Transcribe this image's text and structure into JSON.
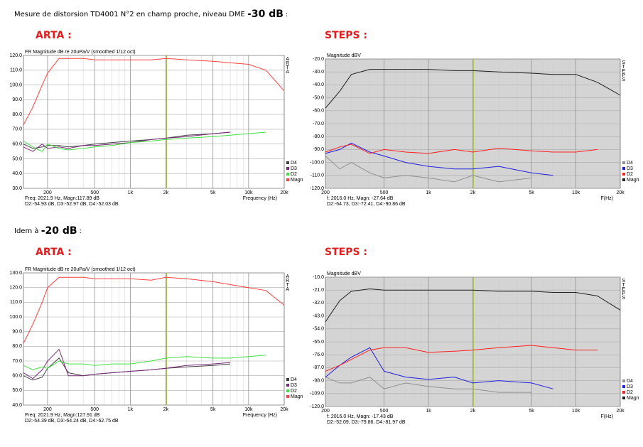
{
  "sections": [
    {
      "intro": "Mesure de distorsion TD4001 N°2 en champ proche, niveau DME ",
      "level": "-30 dB",
      "end": ":",
      "left_label": "ARTA :",
      "right_label": "STEPS :"
    },
    {
      "intro": "Idem à ",
      "level": "-20 dB",
      "end": ":",
      "left_label": "ARTA :",
      "right_label": "STEPS :"
    }
  ],
  "chart_data": [
    {
      "type": "line",
      "title": "FR Magnitude dB re 20uPa/V (smoothed 1/12 oct)",
      "xlabel": "Frequency (Hz)",
      "brand": "ARTA",
      "background": "#ffffff",
      "xscale": "log",
      "grid": true,
      "legend": "lower-right",
      "annotations": [
        "Freq: 2021.9 Hz, Magn:117.89 dB",
        "D2:-54.93 dB, D3:-52.97 dB, D4:-52.03 dB"
      ],
      "cursor_x": 2021.9,
      "cursor_color": "#a0b040",
      "xlim": [
        125,
        20000
      ],
      "xticks": [
        200,
        500,
        {
          "value": 1000,
          "label": "1k"
        },
        {
          "value": 2000,
          "label": "2k"
        },
        {
          "value": 5000,
          "label": "5k"
        },
        {
          "value": 10000,
          "label": "10k"
        },
        {
          "value": 20000,
          "label": "20k"
        }
      ],
      "ylim": [
        30,
        120
      ],
      "yticks": [
        {
          "value": 30,
          "label": "30.0"
        },
        {
          "value": 40,
          "label": "40.0"
        },
        {
          "value": 50,
          "label": "50.0"
        },
        {
          "value": 60,
          "label": "60.0"
        },
        {
          "value": 70,
          "label": "70.0"
        },
        {
          "value": 80,
          "label": "80.0"
        },
        {
          "value": 90,
          "label": "90.0"
        },
        {
          "value": 100,
          "label": "100.0"
        },
        {
          "value": 110,
          "label": "110.0"
        },
        {
          "value": 120,
          "label": "120.0"
        }
      ],
      "x": [
        125,
        150,
        180,
        200,
        250,
        300,
        400,
        500,
        700,
        1000,
        1500,
        2000,
        3000,
        5000,
        7000,
        10000,
        14000,
        20000
      ],
      "series": [
        {
          "name": "D4",
          "color": "#404040",
          "values": [
            60,
            57,
            58,
            59,
            59,
            58,
            59,
            60,
            61,
            62,
            63,
            64,
            66,
            67,
            68,
            null,
            null,
            null
          ]
        },
        {
          "name": "D3",
          "color": "#7a2a7a",
          "values": [
            58,
            55,
            60,
            57,
            58,
            57,
            59,
            59,
            60,
            61,
            63,
            64,
            65,
            67,
            68,
            null,
            null,
            null
          ]
        },
        {
          "name": "D2",
          "color": "#40e040",
          "values": [
            62,
            58,
            55,
            60,
            57,
            56,
            57,
            58,
            59,
            61,
            62,
            63,
            64,
            65,
            66,
            67,
            68,
            null
          ]
        },
        {
          "name": "Magn",
          "color": "#ff4040",
          "values": [
            73,
            85,
            100,
            108,
            118,
            118,
            118,
            117,
            117,
            117,
            117,
            118,
            117,
            116,
            115,
            114,
            110,
            96
          ]
        }
      ]
    },
    {
      "type": "line",
      "title": "Magnitude dBV",
      "xlabel": "F(Hz)",
      "brand": "STEPS",
      "background": "#d4d4d4",
      "xscale": "log",
      "grid": true,
      "legend": "lower-right",
      "annotations": [
        "f: 2016.0 Hz, Magn: -27.64 dB",
        "D2:-64.73, D3:-72.41, D4:-90.86 dB"
      ],
      "cursor_x": 2016.0,
      "cursor_color": "#a0c040",
      "xlim": [
        200,
        20000
      ],
      "xticks": [
        200,
        500,
        {
          "value": 1000,
          "label": "1k"
        },
        {
          "value": 2000,
          "label": "2k"
        },
        {
          "value": 5000,
          "label": "5k"
        },
        {
          "value": 10000,
          "label": "10k"
        },
        {
          "value": 20000,
          "label": "20k"
        }
      ],
      "ylim": [
        -120,
        -20
      ],
      "yticks": [
        {
          "value": -20,
          "label": "-20.0"
        },
        {
          "value": -30,
          "label": "-30.0"
        },
        {
          "value": -40,
          "label": "-40.0"
        },
        {
          "value": -50,
          "label": "-50.0"
        },
        {
          "value": -60,
          "label": "-60.0"
        },
        {
          "value": -70,
          "label": "-70.0"
        },
        {
          "value": -80,
          "label": "-80.0"
        },
        {
          "value": -90,
          "label": "-90.0"
        },
        {
          "value": -100,
          "label": "-100.0"
        },
        {
          "value": -110,
          "label": "-110.0"
        },
        {
          "value": -120,
          "label": "-120.0"
        }
      ],
      "x": [
        200,
        250,
        300,
        400,
        500,
        700,
        1000,
        1500,
        2000,
        3000,
        5000,
        7000,
        10000,
        14000,
        20000
      ],
      "series": [
        {
          "name": "D4",
          "color": "#909090",
          "values": [
            -95,
            -105,
            -100,
            -108,
            -112,
            -110,
            -112,
            -115,
            -110,
            -115,
            -112,
            null,
            null,
            null,
            null
          ]
        },
        {
          "name": "D3",
          "color": "#2020e0",
          "values": [
            -93,
            -90,
            -85,
            -92,
            -95,
            -100,
            -103,
            -105,
            -105,
            -103,
            -108,
            -110,
            null,
            null,
            null
          ]
        },
        {
          "name": "D2",
          "color": "#ff2020",
          "values": [
            -92,
            -88,
            -86,
            -93,
            -90,
            -92,
            -93,
            -90,
            -92,
            -89,
            -91,
            -92,
            -92,
            -90,
            null
          ]
        },
        {
          "name": "Magn",
          "color": "#202020",
          "values": [
            -58,
            -45,
            -32,
            -28,
            -28,
            -28,
            -28,
            -29,
            -29,
            -30,
            -31,
            -32,
            -32,
            -38,
            -48
          ]
        }
      ]
    },
    {
      "type": "line",
      "title": "FR Magnitude dB re 20uPa/V (smoothed 1/12 oct)",
      "xlabel": "Frequency (Hz)",
      "brand": "ARTA",
      "background": "#ffffff",
      "xscale": "log",
      "grid": true,
      "legend": "lower-right",
      "annotations": [
        "Freq: 2021.9 Hz, Magn:127.91 dB",
        "D2:-54.39 dB, D3:-64.24 dB, D4:-62.75 dB"
      ],
      "cursor_x": 2021.9,
      "cursor_color": "#a0b040",
      "xlim": [
        125,
        20000
      ],
      "xticks": [
        200,
        500,
        {
          "value": 1000,
          "label": "1k"
        },
        {
          "value": 2000,
          "label": "2k"
        },
        {
          "value": 5000,
          "label": "5k"
        },
        {
          "value": 10000,
          "label": "10k"
        },
        {
          "value": 20000,
          "label": "20k"
        }
      ],
      "ylim": [
        40,
        130
      ],
      "yticks": [
        {
          "value": 40,
          "label": "40.0"
        },
        {
          "value": 50,
          "label": "50.0"
        },
        {
          "value": 60,
          "label": "60.0"
        },
        {
          "value": 70,
          "label": "70.0"
        },
        {
          "value": 80,
          "label": "80.0"
        },
        {
          "value": 90,
          "label": "90.0"
        },
        {
          "value": 100,
          "label": "100.0"
        },
        {
          "value": 110,
          "label": "110.0"
        },
        {
          "value": 120,
          "label": "120.0"
        },
        {
          "value": 130,
          "label": "130.0"
        }
      ],
      "x": [
        125,
        150,
        180,
        200,
        250,
        300,
        400,
        500,
        700,
        1000,
        1500,
        2000,
        3000,
        5000,
        7000,
        10000,
        14000,
        20000
      ],
      "series": [
        {
          "name": "D4",
          "color": "#404040",
          "values": [
            60,
            57,
            59,
            65,
            72,
            62,
            60,
            61,
            62,
            63,
            64,
            65,
            66,
            67,
            68,
            null,
            null,
            null
          ]
        },
        {
          "name": "D3",
          "color": "#7a2a7a",
          "values": [
            62,
            58,
            64,
            70,
            78,
            60,
            60,
            61,
            62,
            63,
            64,
            65,
            67,
            68,
            69,
            null,
            null,
            null
          ]
        },
        {
          "name": "D2",
          "color": "#40e040",
          "values": [
            67,
            64,
            66,
            65,
            70,
            68,
            68,
            67,
            68,
            68,
            70,
            72,
            73,
            72,
            72,
            73,
            74,
            null
          ]
        },
        {
          "name": "Magn",
          "color": "#ff4040",
          "values": [
            82,
            95,
            110,
            120,
            127,
            127,
            127,
            126,
            126,
            126,
            125,
            127,
            126,
            124,
            122,
            120,
            118,
            108
          ]
        }
      ]
    },
    {
      "type": "line",
      "title": "Magnitude dBV",
      "xlabel": "F(Hz)",
      "brand": "STEPS",
      "background": "#d4d4d4",
      "xscale": "log",
      "grid": true,
      "legend": "lower-right",
      "annotations": [
        "f: 2016.0 Hz, Magn: -17.43 dB",
        "D2:-52.09, D3:-79.86, D4:-81.97 dB"
      ],
      "cursor_x": 2016.0,
      "cursor_color": "#a0c040",
      "xlim": [
        200,
        20000
      ],
      "xticks": [
        200,
        500,
        {
          "value": 1000,
          "label": "1k"
        },
        {
          "value": 2000,
          "label": "2k"
        },
        {
          "value": 5000,
          "label": "5k"
        },
        {
          "value": 10000,
          "label": "10k"
        },
        {
          "value": 20000,
          "label": "20k"
        }
      ],
      "ylim": [
        -120,
        -10
      ],
      "yticks": [
        {
          "value": -10,
          "label": "-10.0"
        },
        {
          "value": -21,
          "label": "-21.0"
        },
        {
          "value": -32,
          "label": "-32.0"
        },
        {
          "value": -43,
          "label": "-43.0"
        },
        {
          "value": -54,
          "label": "-54.0"
        },
        {
          "value": -65,
          "label": "-65.0"
        },
        {
          "value": -76,
          "label": "-76.0"
        },
        {
          "value": -87,
          "label": "-87.0"
        },
        {
          "value": -98,
          "label": "-98.0"
        },
        {
          "value": -109,
          "label": "-109.0"
        },
        {
          "value": -120,
          "label": "-120.0"
        }
      ],
      "x": [
        200,
        250,
        300,
        400,
        500,
        700,
        1000,
        1500,
        2000,
        3000,
        5000,
        7000,
        10000,
        14000,
        20000
      ],
      "series": [
        {
          "name": "D4",
          "color": "#909090",
          "values": [
            -95,
            -100,
            -100,
            -95,
            -105,
            -100,
            -103,
            -105,
            -105,
            -108,
            -108,
            null,
            null,
            null,
            null
          ]
        },
        {
          "name": "D3",
          "color": "#2020e0",
          "values": [
            -95,
            -85,
            -78,
            -70,
            -90,
            -95,
            -97,
            -95,
            -100,
            -98,
            -100,
            -105,
            null,
            null,
            null
          ]
        },
        {
          "name": "D2",
          "color": "#ff2020",
          "values": [
            -90,
            -85,
            -80,
            -72,
            -70,
            -70,
            -74,
            -73,
            -72,
            -70,
            -68,
            -70,
            -72,
            -72,
            null
          ]
        },
        {
          "name": "Magn",
          "color": "#202020",
          "values": [
            -48,
            -30,
            -22,
            -20,
            -21,
            -21,
            -21,
            -21,
            -21,
            -22,
            -22,
            -23,
            -23,
            -26,
            -38
          ]
        }
      ]
    }
  ]
}
